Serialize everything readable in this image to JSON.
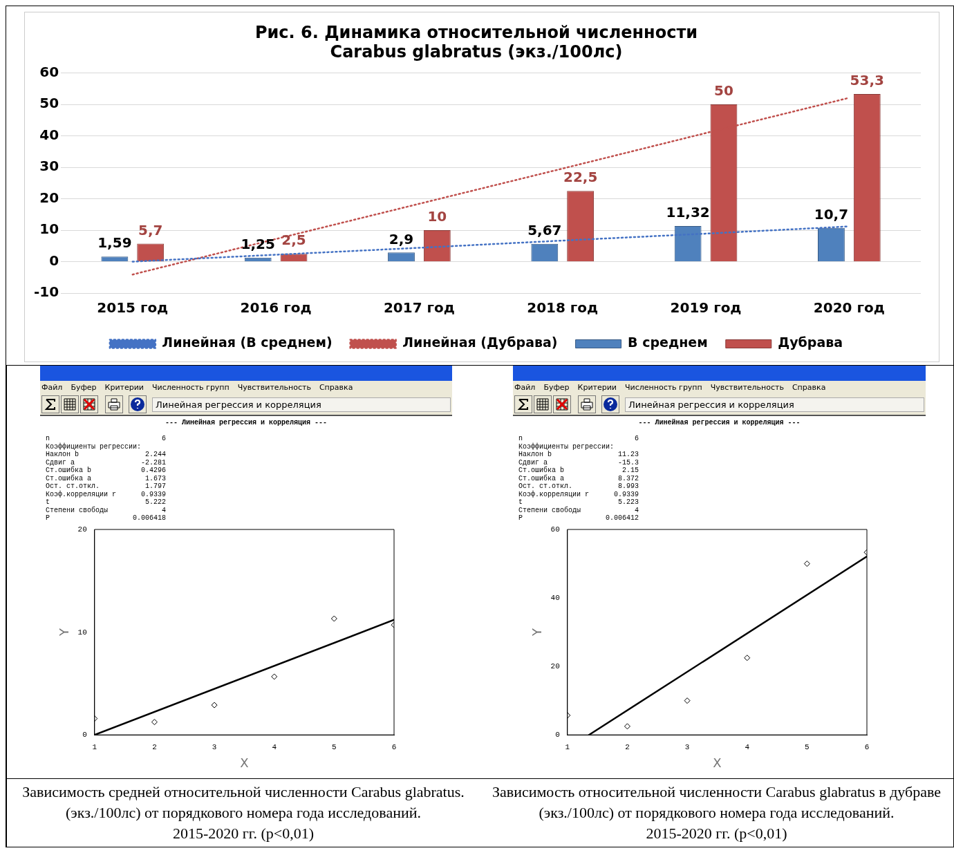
{
  "chart_data": [
    {
      "type": "bar",
      "title": "Рис. 6. Динамика относительной численности\nCarabus glabratus (экз./100лс)",
      "categories": [
        "2015 год",
        "2016 год",
        "2017 год",
        "2018 год",
        "2019 год",
        "2020 год"
      ],
      "series": [
        {
          "name": "В среднем",
          "color": "#4f81bd",
          "values": [
            1.59,
            1.25,
            2.9,
            5.67,
            11.32,
            10.7
          ],
          "value_labels": [
            "1,59",
            "1,25",
            "2,9",
            "5,67",
            "11,32",
            "10,7"
          ]
        },
        {
          "name": "Дубрава",
          "color": "#c0504d",
          "values": [
            5.7,
            2.5,
            10,
            22.5,
            50,
            53.3
          ],
          "value_labels": [
            "5,7",
            "2,5",
            "10",
            "22,5",
            "50",
            "53,3"
          ]
        },
        {
          "name": "Линейная (В среднем)",
          "type": "line",
          "color": "#4472c4",
          "values": [
            0,
            2.2,
            4.4,
            6.7,
            8.9,
            11.2
          ],
          "line_style": "dotted",
          "marker": "none"
        },
        {
          "name": "Линейная (Дубрава)",
          "type": "line",
          "color": "#c0504d",
          "values": [
            -4.1,
            7.2,
            18.4,
            29.6,
            40.9,
            52.1
          ],
          "line_style": "dotted",
          "marker": "none"
        }
      ],
      "ylim": [
        -10,
        60
      ],
      "yticks": [
        -10,
        0,
        10,
        20,
        30,
        40,
        50,
        60
      ],
      "grid": "y",
      "legend": "bottom"
    },
    {
      "type": "scatter",
      "xlabel": "X",
      "ylabel": "Y",
      "xlim": [
        1,
        6
      ],
      "xticks": [
        1,
        2,
        3,
        4,
        5,
        6
      ],
      "ylim": [
        0,
        20
      ],
      "yticks": [
        0,
        10,
        20
      ],
      "series": [
        {
          "color": "#000000",
          "x": [
            1,
            2,
            3,
            4,
            5,
            6
          ],
          "values": [
            1.59,
            1.25,
            2.9,
            5.67,
            11.32,
            10.7
          ],
          "marker": "diamond"
        },
        {
          "type": "line",
          "color": "#000000",
          "x": [
            1,
            6
          ],
          "values": [
            0,
            11.2
          ],
          "marker": "none"
        }
      ],
      "annotations": [
        "Файл",
        "Буфер",
        "Критерии",
        "Численность групп",
        "Чувствительность",
        "Справка",
        "Линейная регрессия и корреляция",
        "--- Линейная регрессия и корреляция ---",
        "n                           6",
        "Коэффициенты регрессии:",
        "Наклон b                2.244",
        "Сдвиг a                -2.281",
        "Ст.ошибка b            0.4296",
        "Ст.ошибка a             1.673",
        "Ост. ст.откл.           1.797",
        "Коэф.корреляции r      0.9339",
        "t                       5.222",
        "Степени свободы             4",
        "P                    0.006418",
        "Зависимость средней относительной численности Carabus glabratus. (экз./100лс) от порядкового номера года исследований.\n2015-2020 гг. (p<0,01)"
      ]
    },
    {
      "type": "scatter",
      "xlabel": "X",
      "ylabel": "Y",
      "xlim": [
        1,
        6
      ],
      "xticks": [
        1,
        2,
        3,
        4,
        5,
        6
      ],
      "ylim": [
        0,
        60
      ],
      "yticks": [
        0,
        20,
        40,
        60
      ],
      "series": [
        {
          "color": "#000000",
          "x": [
            1,
            2,
            3,
            4,
            5,
            6
          ],
          "values": [
            5.7,
            2.5,
            10,
            22.5,
            50,
            53.3
          ],
          "marker": "diamond"
        },
        {
          "type": "line",
          "color": "#000000",
          "x": [
            1.36,
            6
          ],
          "values": [
            0,
            52.1
          ],
          "marker": "none"
        }
      ],
      "annotations": [
        "Файл",
        "Буфер",
        "Критерии",
        "Численность групп",
        "Чувствительность",
        "Справка",
        "Линейная регрессия и корреляция",
        "--- Линейная регрессия и корреляция ---",
        "n                           6",
        "Коэффициенты регрессии:",
        "Наклон b                11.23",
        "Сдвиг a                 -15.3",
        "Ст.ошибка b              2.15",
        "Ст.ошибка a             8.372",
        "Ост. ст.откл.           8.993",
        "Коэф.корреляции r      0.9339",
        "t                       5.223",
        "Степени свободы             4",
        "P                    0.006412",
        "Зависимость относительной численности Carabus glabratus в дубраве (экз./100лс) от порядкового номера года исследований.\n2015-2020 гг. (p<0,01)"
      ]
    }
  ]
}
